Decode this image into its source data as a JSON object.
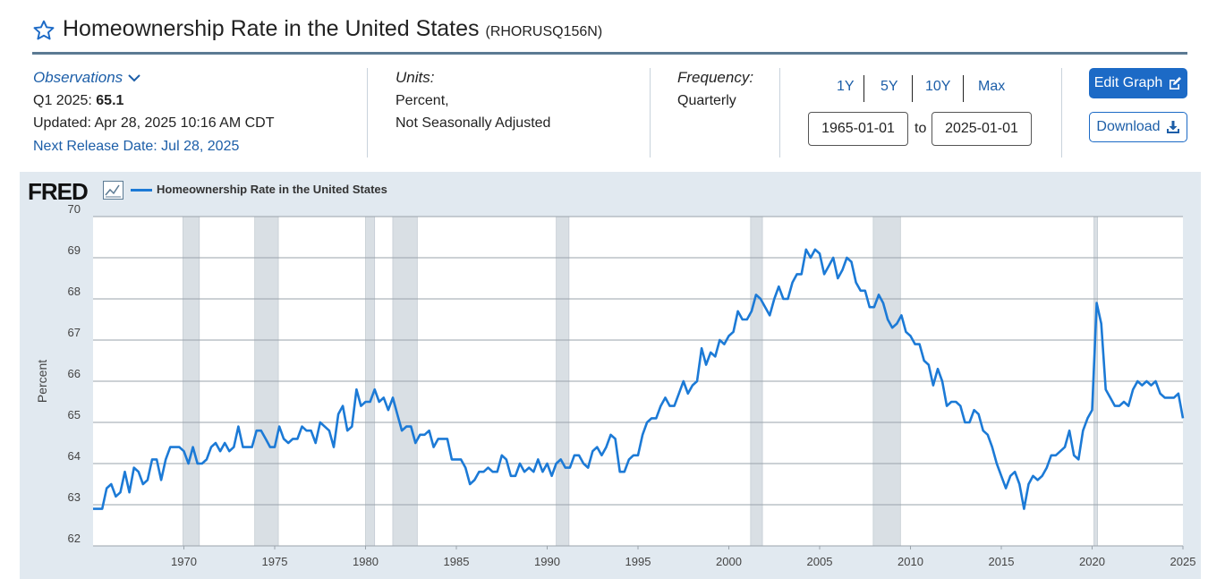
{
  "header": {
    "title": "Homeownership Rate in the United States",
    "series_id": "(RHORUSQ156N)"
  },
  "observations": {
    "heading": "Observations",
    "latest_label": "Q1 2025:",
    "latest_value": "65.1",
    "updated": "Updated: Apr 28, 2025 10:16 AM CDT",
    "next_release": "Next Release Date: Jul 28, 2025"
  },
  "units": {
    "heading": "Units:",
    "line1": "Percent,",
    "line2": "Not Seasonally Adjusted"
  },
  "frequency": {
    "heading": "Frequency:",
    "value": "Quarterly"
  },
  "range": {
    "buttons": [
      "1Y",
      "5Y",
      "10Y",
      "Max"
    ],
    "start": "1965-01-01",
    "to": "to",
    "end": "2025-01-01"
  },
  "actions": {
    "edit": "Edit Graph",
    "download": "Download"
  },
  "chart_header": {
    "logo": "FRED",
    "legend": "Homeownership Rate in the United States"
  },
  "colors": {
    "accent": "#1c6ac6",
    "series": "#1c7ad6",
    "recession": "#d9dfe4",
    "panel": "#e1e9f0"
  },
  "chart_data": {
    "type": "line",
    "ylabel": "Percent",
    "ylim": [
      62,
      70
    ],
    "xlim": [
      1965.0,
      2025.0
    ],
    "yticks": [
      "62",
      "63",
      "64",
      "65",
      "66",
      "67",
      "68",
      "69",
      "70"
    ],
    "xticks": [
      "1970",
      "1975",
      "1980",
      "1985",
      "1990",
      "1995",
      "2000",
      "2005",
      "2010",
      "2015",
      "2020",
      "2025"
    ],
    "grid": true,
    "legend": "top-left",
    "recessions": [
      [
        1969.95,
        1970.85
      ],
      [
        1973.9,
        1975.2
      ],
      [
        1980.0,
        1980.5
      ],
      [
        1981.5,
        1982.85
      ],
      [
        1990.5,
        1991.2
      ],
      [
        2001.2,
        2001.85
      ],
      [
        2007.95,
        2009.45
      ],
      [
        2020.1,
        2020.3
      ]
    ],
    "series": [
      {
        "name": "Homeownership Rate in the United States",
        "start_year": 1965,
        "step": 0.25,
        "values": [
          62.9,
          62.9,
          62.9,
          63.4,
          63.5,
          63.2,
          63.3,
          63.8,
          63.3,
          63.9,
          63.8,
          63.5,
          63.6,
          64.1,
          64.1,
          63.6,
          64.1,
          64.4,
          64.4,
          64.4,
          64.3,
          64.0,
          64.4,
          64.0,
          64.0,
          64.1,
          64.4,
          64.5,
          64.3,
          64.5,
          64.3,
          64.4,
          64.9,
          64.4,
          64.4,
          64.4,
          64.8,
          64.8,
          64.6,
          64.4,
          64.4,
          64.9,
          64.6,
          64.5,
          64.6,
          64.6,
          64.9,
          64.8,
          64.8,
          64.5,
          65.0,
          64.9,
          64.8,
          64.4,
          65.2,
          65.4,
          64.8,
          64.9,
          65.8,
          65.4,
          65.5,
          65.5,
          65.8,
          65.5,
          65.6,
          65.3,
          65.6,
          65.2,
          64.8,
          64.9,
          64.9,
          64.5,
          64.7,
          64.7,
          64.8,
          64.4,
          64.6,
          64.6,
          64.6,
          64.1,
          64.1,
          64.1,
          63.9,
          63.5,
          63.6,
          63.8,
          63.8,
          63.9,
          63.8,
          63.8,
          64.2,
          64.1,
          63.7,
          63.7,
          64.0,
          63.8,
          63.9,
          63.8,
          64.1,
          63.8,
          64.0,
          63.7,
          64.0,
          64.1,
          63.9,
          63.9,
          64.2,
          64.2,
          64.0,
          63.9,
          64.3,
          64.4,
          64.2,
          64.4,
          64.7,
          64.6,
          63.8,
          63.8,
          64.1,
          64.2,
          64.2,
          64.7,
          65.0,
          65.1,
          65.1,
          65.4,
          65.6,
          65.4,
          65.4,
          65.7,
          66.0,
          65.7,
          65.9,
          66.0,
          66.8,
          66.4,
          66.7,
          66.6,
          67.0,
          66.9,
          67.1,
          67.2,
          67.7,
          67.5,
          67.5,
          67.7,
          68.1,
          68.0,
          67.8,
          67.6,
          68.0,
          68.3,
          68.0,
          68.0,
          68.4,
          68.6,
          68.6,
          69.2,
          69.0,
          69.2,
          69.1,
          68.6,
          68.8,
          69.0,
          68.5,
          68.7,
          69.0,
          68.9,
          68.4,
          68.2,
          68.2,
          67.8,
          67.8,
          68.1,
          67.9,
          67.5,
          67.3,
          67.4,
          67.6,
          67.2,
          67.1,
          66.9,
          66.9,
          66.5,
          66.4,
          65.9,
          66.3,
          66.0,
          65.4,
          65.5,
          65.5,
          65.4,
          65.0,
          65.0,
          65.3,
          65.2,
          64.8,
          64.7,
          64.4,
          64.0,
          63.7,
          63.4,
          63.7,
          63.8,
          63.5,
          62.9,
          63.5,
          63.7,
          63.6,
          63.7,
          63.9,
          64.2,
          64.2,
          64.3,
          64.4,
          64.8,
          64.2,
          64.1,
          64.8,
          65.1,
          65.3,
          67.9,
          67.4,
          65.8,
          65.6,
          65.4,
          65.4,
          65.5,
          65.4,
          65.8,
          66.0,
          65.9,
          66.0,
          65.9,
          66.0,
          65.7,
          65.6,
          65.6,
          65.6,
          65.7,
          65.1
        ]
      }
    ]
  }
}
